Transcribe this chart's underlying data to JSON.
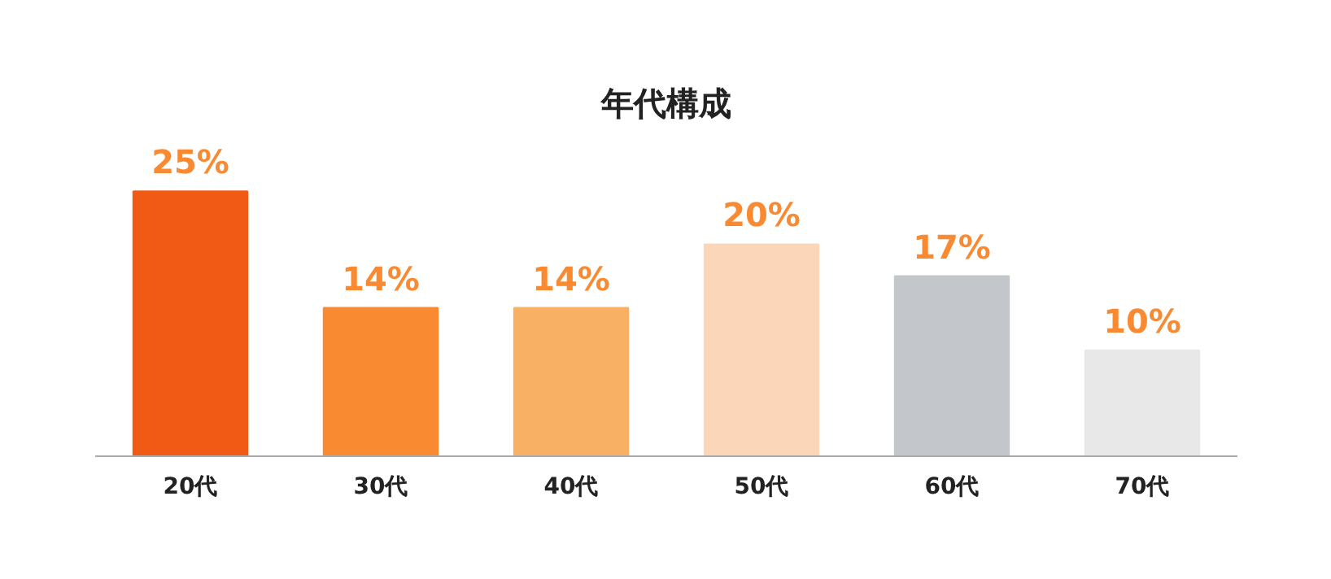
{
  "chart_data": {
    "type": "bar",
    "title": "年代構成",
    "categories": [
      "20代",
      "30代",
      "40代",
      "50代",
      "60代",
      "70代"
    ],
    "values": [
      25,
      14,
      14,
      20,
      17,
      10
    ],
    "colors": [
      "#f05a14",
      "#f98a32",
      "#f7b064",
      "#fcd6b8",
      "#c3c7cb",
      "#e8e8e8"
    ],
    "value_labels": [
      "25%",
      "14%",
      "14%",
      "20%",
      "17%",
      "10%"
    ],
    "grid": false
  }
}
